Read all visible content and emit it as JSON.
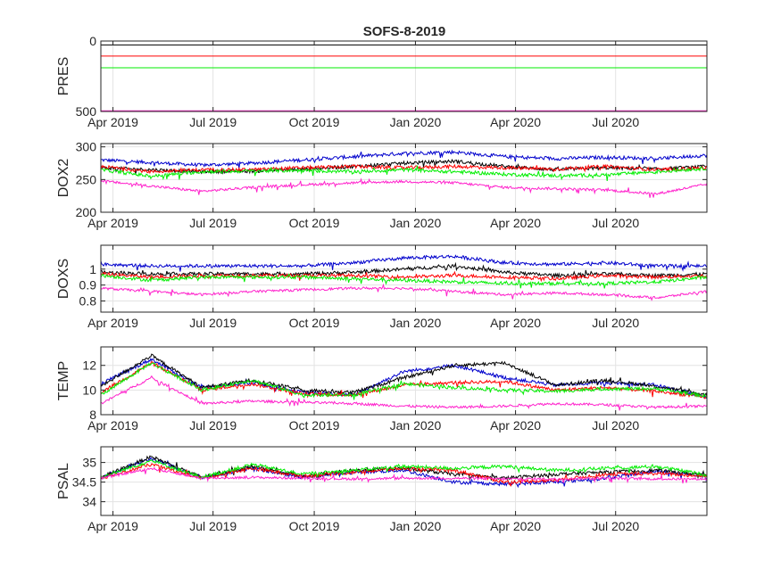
{
  "chart_data": {
    "title": "SOFS-8-2019",
    "type": "line",
    "x_ticks": [
      "Apr 2019",
      "Jul 2019",
      "Oct 2019",
      "Jan 2020",
      "Apr 2020",
      "Jul 2020"
    ],
    "x_tick_dates": [
      "2019-04-01",
      "2019-07-01",
      "2019-10-01",
      "2020-01-01",
      "2020-04-01",
      "2020-07-01"
    ],
    "xlim": [
      "2019-03-21",
      "2020-09-22"
    ],
    "grid": true,
    "series_colors": [
      "#0000cc",
      "#000000",
      "#ff0000",
      "#00ee00",
      "#ff22cc"
    ],
    "panels": [
      {
        "ylabel": "PRES",
        "ylim": [
          0,
          500
        ],
        "reversed": true,
        "yticks": [
          "0",
          "500"
        ],
        "ytick_values": [
          0,
          500
        ],
        "series": [
          {
            "color": "#0000cc",
            "values": [
              0,
              0,
              0,
              0,
              0,
              0,
              0,
              0,
              0,
              0,
              0,
              0,
              0
            ]
          },
          {
            "color": "#000000",
            "values": [
              28,
              28,
              28,
              28,
              28,
              28,
              28,
              28,
              28,
              28,
              28,
              28,
              28
            ]
          },
          {
            "color": "#ff0000",
            "values": [
              107,
              107,
              107,
              107,
              107,
              107,
              107,
              107,
              107,
              107,
              107,
              107,
              107
            ]
          },
          {
            "color": "#00ee00",
            "values": [
              190,
              190,
              190,
              190,
              190,
              190,
              190,
              190,
              190,
              190,
              190,
              190,
              190
            ]
          },
          {
            "color": "#ff22cc",
            "values": [
              495,
              495,
              495,
              495,
              495,
              495,
              495,
              495,
              495,
              495,
              495,
              495,
              495
            ]
          }
        ]
      },
      {
        "ylabel": "DOX2",
        "ylim": [
          200,
          305
        ],
        "yticks": [
          "200",
          "250",
          "300"
        ],
        "ytick_values": [
          200,
          250,
          300
        ],
        "series": [
          {
            "color": "#0000cc",
            "values": [
              280,
              276,
              272,
              275,
              280,
              285,
              290,
              292,
              285,
              282,
              284,
              282,
              287
            ]
          },
          {
            "color": "#000000",
            "values": [
              268,
              265,
              262,
              263,
              266,
              270,
              275,
              278,
              270,
              265,
              268,
              266,
              270
            ]
          },
          {
            "color": "#ff0000",
            "values": [
              270,
              262,
              265,
              265,
              268,
              270,
              268,
              270,
              268,
              266,
              270,
              265,
              268
            ]
          },
          {
            "color": "#00ee00",
            "values": [
              265,
              255,
              262,
              263,
              264,
              262,
              265,
              262,
              258,
              256,
              257,
              262,
              267
            ]
          },
          {
            "color": "#ff22cc",
            "values": [
              248,
              240,
              232,
              238,
              242,
              245,
              247,
              245,
              238,
              236,
              234,
              228,
              243
            ]
          }
        ]
      },
      {
        "ylabel": "DOXS",
        "ylim": [
          0.73,
          1.15
        ],
        "yticks": [
          "0.8",
          "0.9",
          "1"
        ],
        "ytick_values": [
          0.8,
          0.9,
          1.0
        ],
        "series": [
          {
            "color": "#0000cc",
            "values": [
              1.03,
              1.02,
              1.02,
              1.02,
              1.02,
              1.04,
              1.07,
              1.08,
              1.04,
              1.03,
              1.04,
              1.02,
              1.02
            ]
          },
          {
            "color": "#000000",
            "values": [
              0.98,
              0.97,
              0.97,
              0.97,
              0.97,
              0.98,
              1.0,
              1.02,
              0.98,
              0.96,
              0.97,
              0.96,
              0.97
            ]
          },
          {
            "color": "#ff0000",
            "values": [
              0.97,
              0.95,
              0.96,
              0.96,
              0.96,
              0.96,
              0.95,
              0.96,
              0.95,
              0.94,
              0.96,
              0.95,
              0.96
            ]
          },
          {
            "color": "#00ee00",
            "values": [
              0.96,
              0.93,
              0.95,
              0.95,
              0.95,
              0.94,
              0.93,
              0.92,
              0.91,
              0.91,
              0.91,
              0.92,
              0.95
            ]
          },
          {
            "color": "#ff22cc",
            "values": [
              0.88,
              0.86,
              0.84,
              0.86,
              0.87,
              0.88,
              0.88,
              0.86,
              0.84,
              0.85,
              0.84,
              0.82,
              0.86
            ]
          }
        ]
      },
      {
        "ylabel": "TEMP",
        "ylim": [
          8,
          13.5
        ],
        "yticks": [
          "8",
          "10",
          "12"
        ],
        "ytick_values": [
          8,
          10,
          12
        ],
        "series": [
          {
            "color": "#0000cc",
            "values": [
              10.5,
              12.5,
              10.2,
              10.6,
              9.8,
              9.6,
              11.5,
              12.0,
              11.0,
              10.4,
              10.6,
              10.4,
              9.4
            ]
          },
          {
            "color": "#000000",
            "values": [
              10.3,
              12.8,
              10.2,
              10.8,
              10.0,
              9.8,
              11.0,
              12.0,
              12.2,
              10.4,
              10.8,
              10.3,
              9.6
            ]
          },
          {
            "color": "#ff0000",
            "values": [
              9.8,
              12.2,
              10.0,
              10.5,
              9.7,
              9.6,
              10.4,
              10.6,
              10.7,
              10.0,
              10.2,
              9.9,
              9.4
            ]
          },
          {
            "color": "#00ee00",
            "values": [
              9.6,
              12.2,
              10.0,
              10.8,
              9.6,
              9.6,
              10.5,
              10.2,
              10.0,
              9.9,
              10.1,
              10.1,
              9.5
            ]
          },
          {
            "color": "#ff22cc",
            "values": [
              8.9,
              11.0,
              8.9,
              9.1,
              9.0,
              8.9,
              8.7,
              8.6,
              8.7,
              8.9,
              8.8,
              8.6,
              8.7
            ]
          }
        ]
      },
      {
        "ylabel": "PSAL",
        "ylim": [
          33.65,
          35.4
        ],
        "yticks": [
          "34",
          "34.5",
          "35"
        ],
        "ytick_values": [
          34,
          34.5,
          35
        ],
        "series": [
          {
            "color": "#0000cc",
            "values": [
              34.62,
              35.1,
              34.62,
              34.85,
              34.62,
              34.75,
              34.8,
              34.5,
              34.45,
              34.5,
              34.6,
              34.78,
              34.65
            ]
          },
          {
            "color": "#000000",
            "values": [
              34.62,
              35.15,
              34.62,
              34.9,
              34.65,
              34.8,
              34.85,
              34.7,
              34.6,
              34.7,
              34.75,
              34.8,
              34.68
            ]
          },
          {
            "color": "#ff0000",
            "values": [
              34.6,
              34.95,
              34.6,
              34.85,
              34.65,
              34.75,
              34.85,
              34.8,
              34.5,
              34.55,
              34.7,
              34.72,
              34.65
            ]
          },
          {
            "color": "#00ee00",
            "values": [
              34.62,
              35.05,
              34.62,
              34.95,
              34.7,
              34.8,
              34.9,
              34.85,
              34.9,
              34.8,
              34.85,
              34.9,
              34.68
            ]
          },
          {
            "color": "#ff22cc",
            "values": [
              34.6,
              34.85,
              34.6,
              34.62,
              34.6,
              34.58,
              34.6,
              34.6,
              34.58,
              34.58,
              34.6,
              34.58,
              34.58
            ]
          }
        ]
      }
    ]
  }
}
